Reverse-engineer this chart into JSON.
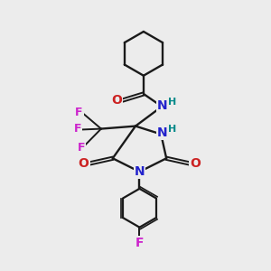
{
  "background_color": "#ececec",
  "bond_color": "#1a1a1a",
  "atom_colors": {
    "N": "#2222cc",
    "O": "#cc2222",
    "F": "#cc22cc",
    "H": "#008888"
  },
  "figsize": [
    3.0,
    3.0
  ],
  "dpi": 100
}
